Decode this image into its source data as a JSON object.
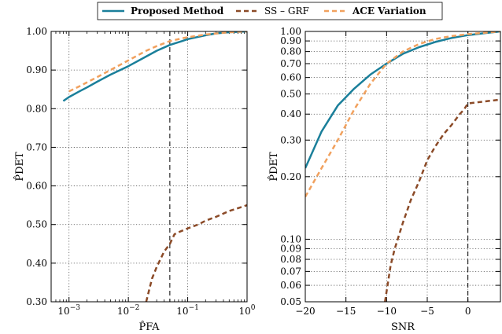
{
  "legend": {
    "items": [
      {
        "label": "Proposed Method",
        "color": "#1a7f9a",
        "dash": "solid",
        "bold": true
      },
      {
        "label": "SS – GRF",
        "color": "#8b4a27",
        "dash": "dashed",
        "bold": false
      },
      {
        "label": "ACE Variation",
        "color": "#f1a15e",
        "dash": "dashed",
        "bold": true
      }
    ]
  },
  "chart_data": [
    {
      "type": "line",
      "xlabel": "P̂FA",
      "ylabel": "P̂DET",
      "xscale": "log",
      "xlim": [
        0.0005,
        1
      ],
      "ylim": [
        0.3,
        1.0
      ],
      "x_ticks": [
        0.001,
        0.01,
        0.1,
        1
      ],
      "x_tick_labels": [
        "10−3",
        "10−2",
        "10−1",
        "100"
      ],
      "y_ticks": [
        0.3,
        0.4,
        0.5,
        0.6,
        0.7,
        0.8,
        0.9,
        1.0
      ],
      "y_tick_labels": [
        "0.30",
        "0.40",
        "0.50",
        "0.60",
        "0.70",
        "0.80",
        "0.90",
        "1.00"
      ],
      "grid": true,
      "vline": {
        "x": 0.05,
        "style": "dashed"
      },
      "series": [
        {
          "name": "Proposed Method",
          "color": "#1a7f9a",
          "dash": "solid",
          "x": [
            0.0008,
            0.001,
            0.0015,
            0.002,
            0.003,
            0.005,
            0.01,
            0.02,
            0.03,
            0.05,
            0.08,
            0.1,
            0.2,
            0.3,
            0.5,
            1.0
          ],
          "y": [
            0.82,
            0.83,
            0.845,
            0.855,
            0.87,
            0.888,
            0.91,
            0.935,
            0.95,
            0.965,
            0.975,
            0.98,
            0.99,
            0.995,
            0.998,
            1.0
          ]
        },
        {
          "name": "SS – GRF",
          "color": "#8b4a27",
          "dash": "dashed",
          "x": [
            0.02,
            0.025,
            0.03,
            0.04,
            0.05,
            0.06,
            0.07,
            0.1,
            0.15,
            0.2,
            0.3,
            0.5,
            1.0
          ],
          "y": [
            0.3,
            0.36,
            0.39,
            0.43,
            0.45,
            0.475,
            0.48,
            0.49,
            0.5,
            0.51,
            0.52,
            0.535,
            0.55
          ]
        },
        {
          "name": "ACE Variation",
          "color": "#f1a15e",
          "dash": "dashed",
          "x": [
            0.001,
            0.0015,
            0.002,
            0.003,
            0.005,
            0.01,
            0.02,
            0.03,
            0.05,
            0.08,
            0.1,
            0.2,
            0.5,
            1.0
          ],
          "y": [
            0.845,
            0.858,
            0.868,
            0.882,
            0.9,
            0.925,
            0.95,
            0.962,
            0.975,
            0.982,
            0.985,
            0.992,
            0.998,
            1.0
          ]
        }
      ]
    },
    {
      "type": "line",
      "xlabel": "SNR",
      "ylabel": "P̂DET",
      "yscale": "log",
      "xlim": [
        -20,
        4
      ],
      "ylim": [
        0.05,
        1.0
      ],
      "x_ticks": [
        -20,
        -15,
        -10,
        -5,
        0
      ],
      "x_tick_labels": [
        "−20",
        "−15",
        "−10",
        "−5",
        "0"
      ],
      "y_ticks": [
        0.05,
        0.06,
        0.07,
        0.08,
        0.09,
        0.1,
        0.2,
        0.3,
        0.4,
        0.5,
        0.6,
        0.7,
        0.8,
        0.9,
        1.0
      ],
      "y_tick_labels": [
        "0.05",
        "0.06",
        "0.07",
        "0.08",
        "0.09",
        "0.10",
        "0.20",
        "0.30",
        "0.40",
        "0.50",
        "0.60",
        "0.70",
        "0.80",
        "0.90",
        "1.00"
      ],
      "grid": true,
      "vline": {
        "x": 0,
        "style": "dashed"
      },
      "series": [
        {
          "name": "Proposed Method",
          "color": "#1a7f9a",
          "dash": "solid",
          "x": [
            -20,
            -18,
            -16,
            -14,
            -12,
            -10,
            -8,
            -6,
            -4,
            -2,
            0,
            2,
            4
          ],
          "y": [
            0.22,
            0.33,
            0.44,
            0.53,
            0.62,
            0.7,
            0.78,
            0.84,
            0.89,
            0.93,
            0.96,
            0.98,
            1.0
          ]
        },
        {
          "name": "SS – GRF",
          "color": "#8b4a27",
          "dash": "dashed",
          "x": [
            -10.2,
            -9.5,
            -9,
            -8,
            -7,
            -6,
            -5,
            -4,
            -3,
            -2,
            -1,
            -0.5,
            0,
            1,
            2,
            4
          ],
          "y": [
            0.05,
            0.075,
            0.09,
            0.12,
            0.155,
            0.19,
            0.24,
            0.28,
            0.32,
            0.355,
            0.4,
            0.42,
            0.45,
            0.455,
            0.46,
            0.47
          ]
        },
        {
          "name": "ACE Variation",
          "color": "#f1a15e",
          "dash": "dashed",
          "x": [
            -20,
            -18,
            -16,
            -14,
            -12,
            -10,
            -8,
            -6,
            -4,
            -2,
            0,
            2,
            4
          ],
          "y": [
            0.16,
            0.22,
            0.3,
            0.42,
            0.56,
            0.7,
            0.8,
            0.87,
            0.92,
            0.95,
            0.97,
            0.985,
            1.0
          ]
        }
      ]
    }
  ]
}
